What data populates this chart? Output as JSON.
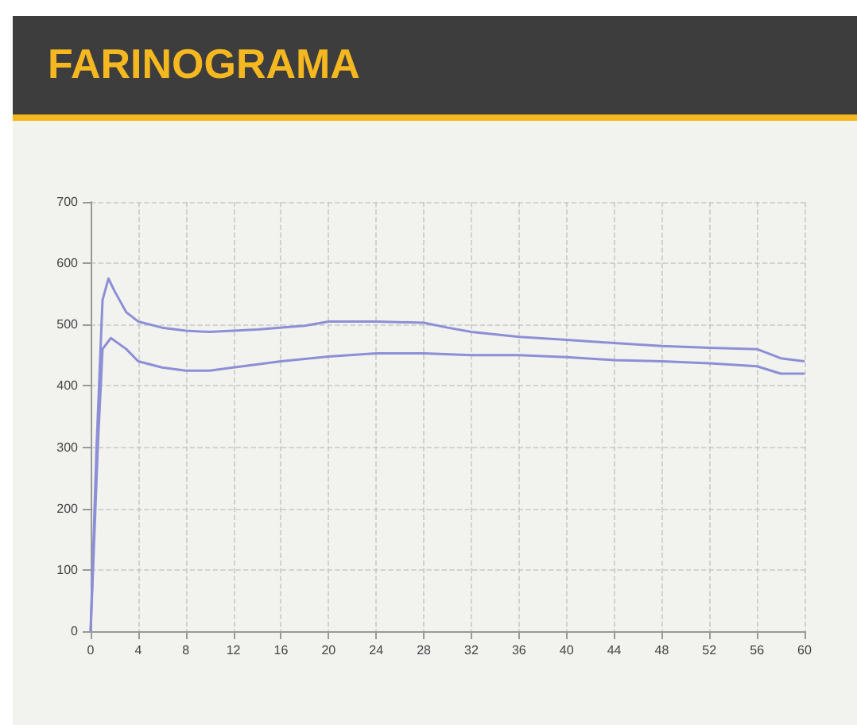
{
  "chart_data": {
    "type": "line",
    "title": "FARINOGRAMA",
    "xlim": [
      0,
      60
    ],
    "xticks": [
      0,
      4,
      8,
      12,
      16,
      20,
      24,
      28,
      32,
      36,
      40,
      44,
      48,
      52,
      56,
      60
    ],
    "ylim": [
      0,
      700
    ],
    "yticks": [
      0,
      100,
      200,
      300,
      400,
      500,
      600,
      700
    ],
    "grid": true,
    "marker": "none",
    "line_style": "solid",
    "series": [
      {
        "color": "#8c8fd6",
        "x": [
          0,
          0.5,
          1,
          1.5,
          2,
          3,
          4,
          6,
          8,
          10,
          14,
          18,
          20,
          24,
          28,
          30,
          32,
          36,
          40,
          44,
          48,
          52,
          56,
          58,
          60
        ],
        "values": [
          0,
          300,
          540,
          575,
          555,
          520,
          505,
          495,
          490,
          488,
          492,
          498,
          505,
          505,
          503,
          495,
          488,
          480,
          475,
          470,
          465,
          462,
          460,
          445,
          440
        ]
      },
      {
        "color": "#8c8fd6",
        "x": [
          0,
          0.6,
          1,
          1.7,
          3,
          4,
          6,
          8,
          10,
          12,
          16,
          20,
          24,
          28,
          32,
          36,
          40,
          44,
          48,
          52,
          56,
          58,
          60
        ],
        "values": [
          0,
          300,
          460,
          478,
          460,
          440,
          430,
          425,
          425,
          430,
          440,
          448,
          453,
          453,
          450,
          450,
          447,
          442,
          440,
          437,
          432,
          420,
          420
        ]
      }
    ]
  }
}
